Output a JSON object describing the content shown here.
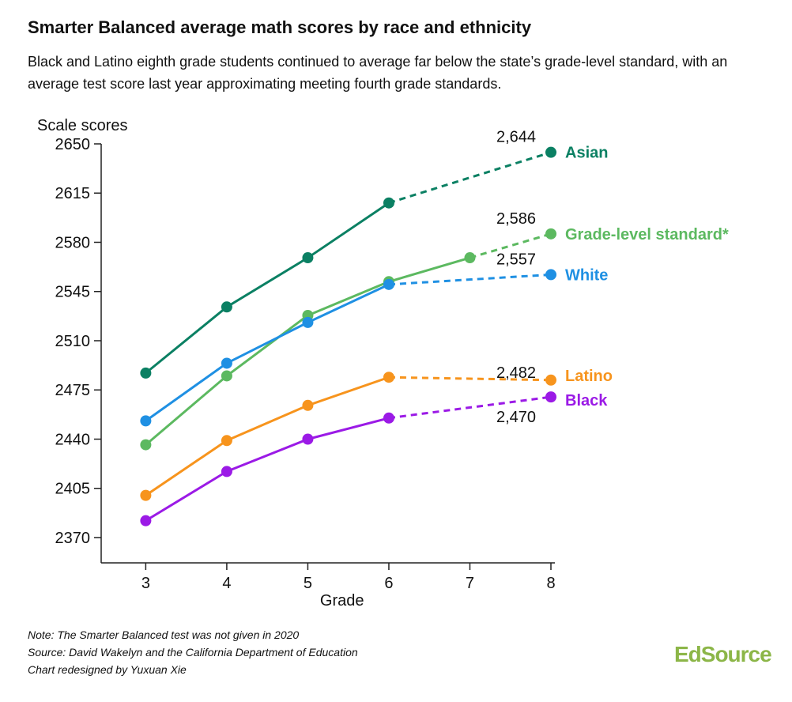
{
  "title": "Smarter Balanced average math scores by race and ethnicity",
  "subtitle": "Black and Latino eighth grade students continued to average far below the state’s grade-level standard, with an average test score last year approximating meeting fourth grade standards.",
  "notes": [
    "Note: The Smarter Balanced test was not given in 2020",
    "Source: David Wakelyn and the California Department of Education",
    "Chart redesigned by Yuxuan Xie"
  ],
  "brand": "EdSource",
  "chart_data": {
    "type": "line",
    "ylabel": "Scale scores",
    "xlabel": "Grade",
    "x": [
      3,
      4,
      5,
      6,
      7,
      8
    ],
    "xlim": [
      2.45,
      8
    ],
    "ylim": [
      2352,
      2650
    ],
    "yticks": [
      2650,
      2615,
      2580,
      2545,
      2510,
      2475,
      2440,
      2405,
      2370
    ],
    "xticks": [
      3,
      4,
      5,
      6,
      7,
      8
    ],
    "grid": false,
    "series": [
      {
        "name": "Asian",
        "color": "#0b8063",
        "solid": [
          [
            3,
            2487
          ],
          [
            4,
            2534
          ],
          [
            5,
            2569
          ],
          [
            6,
            2608
          ]
        ],
        "dashed": [
          [
            6,
            2608
          ],
          [
            8,
            2644
          ]
        ],
        "end_label": "2,644"
      },
      {
        "name": "Grade-level standard*",
        "color": "#5cb960",
        "solid": [
          [
            3,
            2436
          ],
          [
            4,
            2485
          ],
          [
            5,
            2528
          ],
          [
            6,
            2552
          ],
          [
            7,
            2569
          ]
        ],
        "dashed": [
          [
            7,
            2569
          ],
          [
            8,
            2586
          ]
        ],
        "end_label": "2,586"
      },
      {
        "name": "White",
        "color": "#1f90e3",
        "solid": [
          [
            3,
            2453
          ],
          [
            4,
            2494
          ],
          [
            5,
            2523
          ],
          [
            6,
            2550
          ]
        ],
        "dashed": [
          [
            6,
            2550
          ],
          [
            8,
            2557
          ]
        ],
        "end_label": "2,557"
      },
      {
        "name": "Latino",
        "color": "#f7941d",
        "solid": [
          [
            3,
            2400
          ],
          [
            4,
            2439
          ],
          [
            5,
            2464
          ],
          [
            6,
            2484
          ]
        ],
        "dashed": [
          [
            6,
            2484
          ],
          [
            8,
            2482
          ]
        ],
        "end_label": "2,482"
      },
      {
        "name": "Black",
        "color": "#9b1ae6",
        "solid": [
          [
            3,
            2382
          ],
          [
            4,
            2417
          ],
          [
            5,
            2440
          ],
          [
            6,
            2455
          ]
        ],
        "dashed": [
          [
            6,
            2455
          ],
          [
            8,
            2470
          ]
        ],
        "end_label": "2,470"
      }
    ]
  }
}
